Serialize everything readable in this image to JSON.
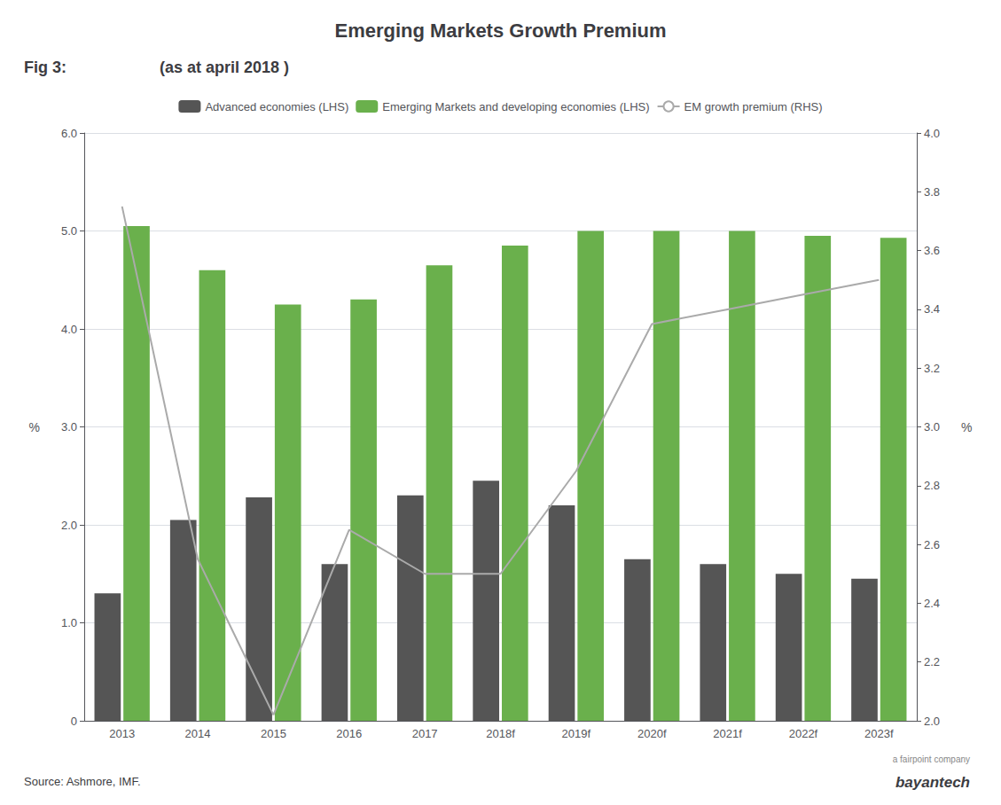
{
  "chart_data": {
    "type": "bar",
    "title": "Emerging Markets Growth Premium",
    "subtitle": "(as at april 2018 )",
    "annotations": [
      "Fig 3:",
      "Source: Ashmore, IMF.",
      "bayantech",
      "a fairpoint company"
    ],
    "categories": [
      "2013",
      "2014",
      "2015",
      "2016",
      "2017",
      "2018f",
      "2019f",
      "2020f",
      "2021f",
      "2022f",
      "2023f"
    ],
    "series": [
      {
        "name": "Advanced economies (LHS)",
        "type": "bar",
        "color": "#555555",
        "values": [
          1.3,
          2.05,
          2.28,
          1.6,
          2.3,
          2.45,
          2.2,
          1.65,
          1.6,
          1.5,
          1.45
        ]
      },
      {
        "name": "Emerging Markets and developing economies (LHS)",
        "type": "bar",
        "color": "#6ab04c",
        "values": [
          5.05,
          4.6,
          4.25,
          4.3,
          4.65,
          4.85,
          5.0,
          5.0,
          5.0,
          4.95,
          4.93
        ]
      },
      {
        "name": "EM growth premium (RHS)",
        "type": "line",
        "axis": "y2",
        "color": "#aaaaaa",
        "values": [
          3.75,
          2.55,
          2.02,
          2.65,
          2.5,
          2.5,
          2.85,
          3.35,
          3.4,
          3.45,
          3.5
        ]
      }
    ],
    "ylabel": "%",
    "y2label": "%",
    "ylim": [
      0,
      6.0
    ],
    "yticks": [
      0,
      {
        "value": 1.0,
        "label": "1.0"
      },
      {
        "value": 2.0,
        "label": "2.0"
      },
      {
        "value": 3.0,
        "label": "3.0"
      },
      {
        "value": 4.0,
        "label": "4.0"
      },
      {
        "value": 5.0,
        "label": "5.0"
      },
      {
        "value": 6.0,
        "label": "6.0"
      }
    ],
    "y2lim": [
      2.0,
      4.0
    ],
    "y2ticks": [
      {
        "value": 2.0,
        "label": "2.0"
      },
      2.2,
      2.4,
      2.6,
      2.8,
      {
        "value": 3.0,
        "label": "3.0"
      },
      3.2,
      3.4,
      3.6,
      3.8,
      {
        "value": 4.0,
        "label": "4.0"
      }
    ],
    "grid": true,
    "legend": "top"
  }
}
